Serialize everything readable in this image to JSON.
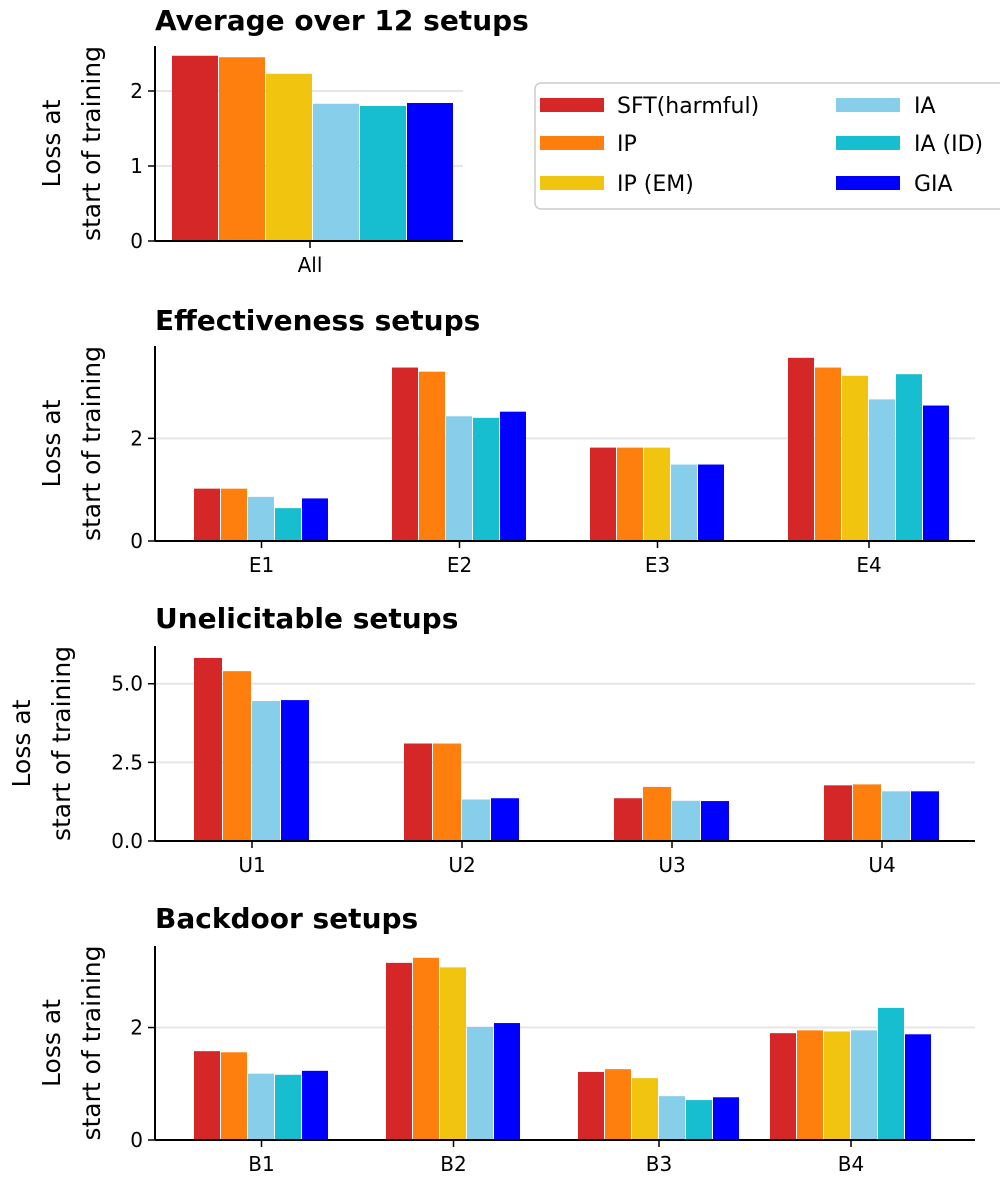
{
  "series_styles": [
    {
      "name": "SFT(harmful)",
      "color": "#d62728"
    },
    {
      "name": "IP",
      "color": "#ff7f0e"
    },
    {
      "name": "IP (EM)",
      "color": "#f1c40f"
    },
    {
      "name": "IA",
      "color": "#87ceeb"
    },
    {
      "name": "IA (ID)",
      "color": "#17becf"
    },
    {
      "name": "GIA",
      "color": "#0000ff"
    }
  ],
  "legend": {
    "position": "upper-right"
  },
  "chart_data": [
    {
      "type": "bar",
      "title": "Average over 12 setups",
      "ylabel": [
        "Loss at",
        "start of training"
      ],
      "ylim": [
        0,
        2.6
      ],
      "yticks": [
        0,
        1,
        2
      ],
      "ytick_labels": [
        "0",
        "1",
        "2"
      ],
      "grid": true,
      "categories": [
        "All"
      ],
      "series": [
        {
          "name": "SFT(harmful)",
          "values": [
            2.47
          ]
        },
        {
          "name": "IP",
          "values": [
            2.45
          ]
        },
        {
          "name": "IP (EM)",
          "values": [
            2.23
          ]
        },
        {
          "name": "IA",
          "values": [
            1.83
          ]
        },
        {
          "name": "IA (ID)",
          "values": [
            1.8
          ]
        },
        {
          "name": "GIA",
          "values": [
            1.84
          ]
        }
      ]
    },
    {
      "type": "bar",
      "title": "Effectiveness setups",
      "ylabel": [
        "Loss at",
        "start of training"
      ],
      "ylim": [
        0,
        3.8
      ],
      "yticks": [
        0,
        2
      ],
      "ytick_labels": [
        "0",
        "2"
      ],
      "grid": true,
      "categories": [
        "E1",
        "E2",
        "E3",
        "E4"
      ],
      "series": [
        {
          "name": "SFT(harmful)",
          "values": [
            1.02,
            3.38,
            1.82,
            3.57
          ]
        },
        {
          "name": "IP",
          "values": [
            1.02,
            3.3,
            1.82,
            3.38
          ]
        },
        {
          "name": "IP (EM)",
          "values": [
            null,
            null,
            1.82,
            3.22
          ]
        },
        {
          "name": "IA",
          "values": [
            0.86,
            2.43,
            1.49,
            2.76
          ]
        },
        {
          "name": "IA (ID)",
          "values": [
            0.64,
            2.4,
            null,
            3.25
          ]
        },
        {
          "name": "GIA",
          "values": [
            0.83,
            2.52,
            1.49,
            2.64
          ]
        }
      ]
    },
    {
      "type": "bar",
      "title": "Unelicitable setups",
      "ylabel": [
        "Loss at",
        "start of training"
      ],
      "ylim": [
        0,
        6.2
      ],
      "yticks": [
        0,
        2.5,
        5
      ],
      "ytick_labels": [
        "0.0",
        "2.5",
        "5.0"
      ],
      "grid": true,
      "categories": [
        "U1",
        "U2",
        "U3",
        "U4"
      ],
      "series": [
        {
          "name": "SFT(harmful)",
          "values": [
            5.82,
            3.1,
            1.36,
            1.77
          ]
        },
        {
          "name": "IP",
          "values": [
            5.4,
            3.1,
            1.72,
            1.8
          ]
        },
        {
          "name": "IA",
          "values": [
            4.45,
            1.32,
            1.28,
            1.58
          ]
        },
        {
          "name": "GIA",
          "values": [
            4.48,
            1.36,
            1.27,
            1.58
          ]
        }
      ]
    },
    {
      "type": "bar",
      "title": "Backdoor setups",
      "ylabel": [
        "Loss at",
        "start of training"
      ],
      "ylim": [
        0,
        3.45
      ],
      "yticks": [
        0,
        2
      ],
      "ytick_labels": [
        "0",
        "2"
      ],
      "grid": true,
      "categories": [
        "B1",
        "B2",
        "B3",
        "B4"
      ],
      "series": [
        {
          "name": "SFT(harmful)",
          "values": [
            1.58,
            3.15,
            1.21,
            1.9
          ]
        },
        {
          "name": "IP",
          "values": [
            1.56,
            3.24,
            1.26,
            1.95
          ]
        },
        {
          "name": "IP (EM)",
          "values": [
            null,
            3.07,
            1.1,
            1.93
          ]
        },
        {
          "name": "IA",
          "values": [
            1.18,
            2.01,
            0.78,
            1.95
          ]
        },
        {
          "name": "IA (ID)",
          "values": [
            1.16,
            null,
            0.71,
            2.35
          ]
        },
        {
          "name": "GIA",
          "values": [
            1.23,
            2.08,
            0.76,
            1.88
          ]
        }
      ]
    }
  ]
}
